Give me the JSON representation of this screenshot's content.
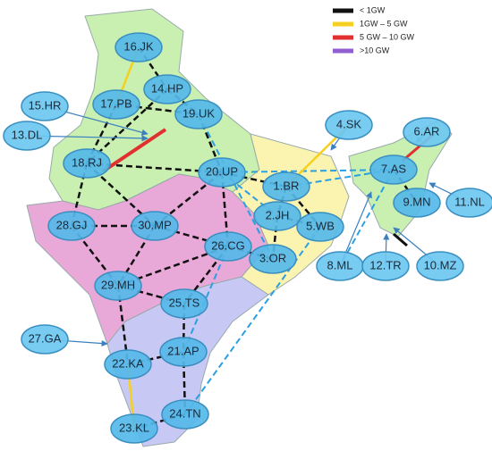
{
  "legend": [
    "< 1GW",
    "1GW – 5 GW",
    "5 GW – 10 GW",
    ">10 GW"
  ],
  "nodes": [
    "16.JK",
    "14.HP",
    "17.PB",
    "19.UK",
    "15.HR",
    "13.DL",
    "18.RJ",
    "20.UP",
    "4.SK",
    "6.AR",
    "7.AS",
    "1.BR",
    "2.JH",
    "5.WB",
    "9.MN",
    "11.NL",
    "28.GJ",
    "30.MP",
    "26.CG",
    "3.OR",
    "8.ML",
    "12.TR",
    "10.MZ",
    "29.MH",
    "25.TS",
    "27.GA",
    "22.KA",
    "21.AP",
    "24.TN",
    "23.KL"
  ]
}
